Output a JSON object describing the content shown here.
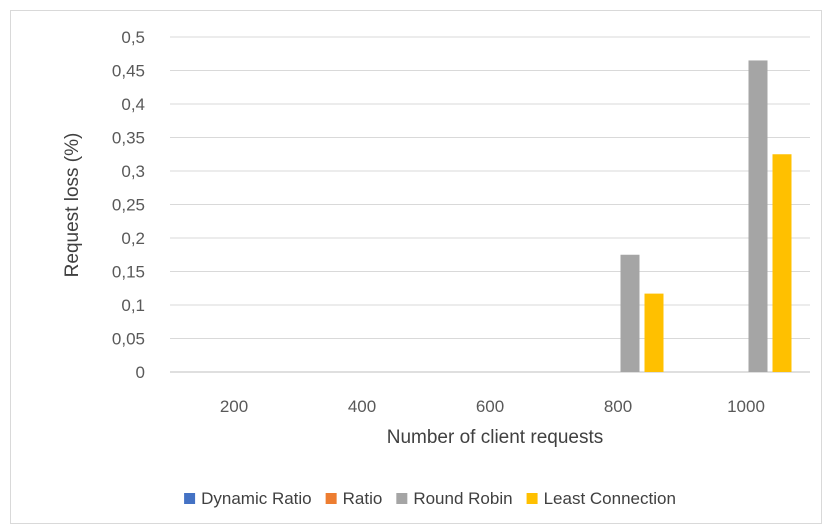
{
  "chart_data": {
    "type": "bar",
    "categories": [
      "200",
      "400",
      "600",
      "800",
      "1000"
    ],
    "series": [
      {
        "name": "Dynamic Ratio",
        "color": "#4472c4",
        "values": [
          0,
          0,
          0,
          0,
          0
        ]
      },
      {
        "name": "Ratio",
        "color": "#ed7d31",
        "values": [
          0,
          0,
          0,
          0,
          0
        ]
      },
      {
        "name": "Round Robin",
        "color": "#a5a5a5",
        "values": [
          0,
          0,
          0,
          0.175,
          0.465
        ]
      },
      {
        "name": "Least Connection",
        "color": "#ffc000",
        "values": [
          0,
          0,
          0,
          0.117,
          0.325
        ]
      }
    ],
    "xlabel": "Number of client requests",
    "ylabel": "Request loss (%)",
    "ylim": [
      0,
      0.5
    ],
    "yticks": [
      "0",
      "0,05",
      "0,1",
      "0,15",
      "0,2",
      "0,25",
      "0,3",
      "0,35",
      "0,4",
      "0,45",
      "0,5"
    ],
    "grid": true,
    "legend_position": "bottom"
  }
}
